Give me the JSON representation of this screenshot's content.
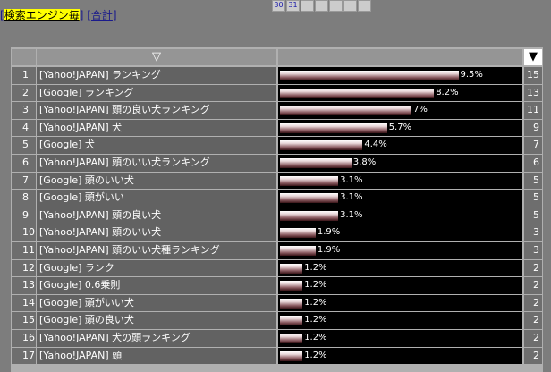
{
  "nav": {
    "by_engine": "検索エンジン毎",
    "total": "合計",
    "bracket_open": "[",
    "bracket_close": "]"
  },
  "calendar": [
    "30",
    "31"
  ],
  "table": {
    "header": {
      "sort_asc": "▽",
      "sort_desc": "▼"
    },
    "rows": [
      {
        "rank": 1,
        "keyword": "[Yahoo!JAPAN] ランキング",
        "percent": 9.5,
        "percent_label": "9.5%",
        "count": 15
      },
      {
        "rank": 2,
        "keyword": "[Google] ランキング",
        "percent": 8.2,
        "percent_label": "8.2%",
        "count": 13
      },
      {
        "rank": 3,
        "keyword": "[Yahoo!JAPAN] 頭の良い犬ランキング",
        "percent": 7,
        "percent_label": "7%",
        "count": 11
      },
      {
        "rank": 4,
        "keyword": "[Yahoo!JAPAN] 犬",
        "percent": 5.7,
        "percent_label": "5.7%",
        "count": 9
      },
      {
        "rank": 5,
        "keyword": "[Google] 犬",
        "percent": 4.4,
        "percent_label": "4.4%",
        "count": 7
      },
      {
        "rank": 6,
        "keyword": "[Yahoo!JAPAN] 頭のいい犬ランキング",
        "percent": 3.8,
        "percent_label": "3.8%",
        "count": 6
      },
      {
        "rank": 7,
        "keyword": "[Google] 頭のいい犬",
        "percent": 3.1,
        "percent_label": "3.1%",
        "count": 5
      },
      {
        "rank": 8,
        "keyword": "[Google] 頭がいい",
        "percent": 3.1,
        "percent_label": "3.1%",
        "count": 5
      },
      {
        "rank": 9,
        "keyword": "[Yahoo!JAPAN] 頭の良い犬",
        "percent": 3.1,
        "percent_label": "3.1%",
        "count": 5
      },
      {
        "rank": 10,
        "keyword": "[Yahoo!JAPAN] 頭のいい犬",
        "percent": 1.9,
        "percent_label": "1.9%",
        "count": 3
      },
      {
        "rank": 11,
        "keyword": "[Yahoo!JAPAN] 頭のいい犬種ランキング",
        "percent": 1.9,
        "percent_label": "1.9%",
        "count": 3
      },
      {
        "rank": 12,
        "keyword": "[Google] ランク",
        "percent": 1.2,
        "percent_label": "1.2%",
        "count": 2
      },
      {
        "rank": 13,
        "keyword": "[Google] 0.6乗則",
        "percent": 1.2,
        "percent_label": "1.2%",
        "count": 2
      },
      {
        "rank": 14,
        "keyword": "[Google] 頭がいい犬",
        "percent": 1.2,
        "percent_label": "1.2%",
        "count": 2
      },
      {
        "rank": 15,
        "keyword": "[Google] 頭の良い犬",
        "percent": 1.2,
        "percent_label": "1.2%",
        "count": 2
      },
      {
        "rank": 16,
        "keyword": "[Yahoo!JAPAN] 犬の頭ランキング",
        "percent": 1.2,
        "percent_label": "1.2%",
        "count": 2
      },
      {
        "rank": 17,
        "keyword": "[Yahoo!JAPAN] 頭",
        "percent": 1.2,
        "percent_label": "1.2%",
        "count": 2
      }
    ]
  }
}
